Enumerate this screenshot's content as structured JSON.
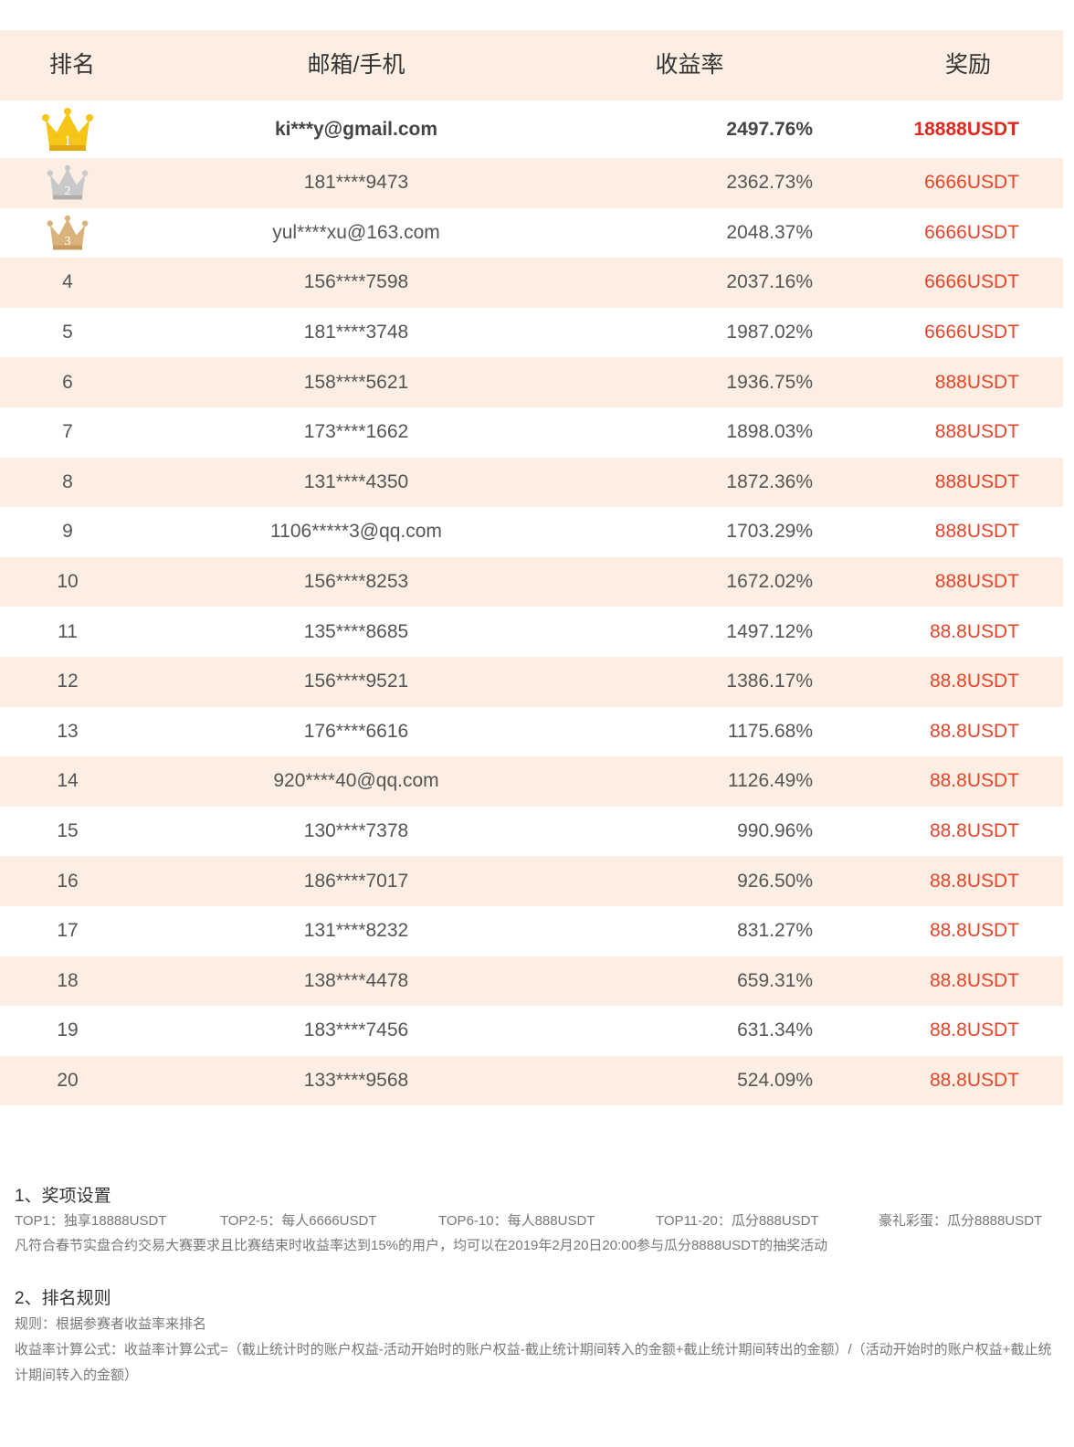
{
  "header": {
    "rank": "排名",
    "user": "邮箱/手机",
    "rate": "收益率",
    "prize": "奖励"
  },
  "rows": [
    {
      "rank": "1",
      "user": "ki***y@gmail.com",
      "rate": "2497.76%",
      "prize": "18888USDT",
      "crown": "gold-crown-icon"
    },
    {
      "rank": "2",
      "user": "181****9473",
      "rate": "2362.73%",
      "prize": "6666USDT",
      "crown": "silver-crown-icon"
    },
    {
      "rank": "3",
      "user": "yul****xu@163.com",
      "rate": "2048.37%",
      "prize": "6666USDT",
      "crown": "bronze-crown-icon"
    },
    {
      "rank": "4",
      "user": "156****7598",
      "rate": "2037.16%",
      "prize": "6666USDT"
    },
    {
      "rank": "5",
      "user": "181****3748",
      "rate": "1987.02%",
      "prize": "6666USDT"
    },
    {
      "rank": "6",
      "user": "158****5621",
      "rate": "1936.75%",
      "prize": "888USDT"
    },
    {
      "rank": "7",
      "user": "173****1662",
      "rate": "1898.03%",
      "prize": "888USDT"
    },
    {
      "rank": "8",
      "user": "131****4350",
      "rate": "1872.36%",
      "prize": "888USDT"
    },
    {
      "rank": "9",
      "user": "1106*****3@qq.com",
      "rate": "1703.29%",
      "prize": "888USDT"
    },
    {
      "rank": "10",
      "user": "156****8253",
      "rate": "1672.02%",
      "prize": "888USDT"
    },
    {
      "rank": "11",
      "user": "135****8685",
      "rate": "1497.12%",
      "prize": "88.8USDT"
    },
    {
      "rank": "12",
      "user": "156****9521",
      "rate": "1386.17%",
      "prize": "88.8USDT"
    },
    {
      "rank": "13",
      "user": "176****6616",
      "rate": "1175.68%",
      "prize": "88.8USDT"
    },
    {
      "rank": "14",
      "user": "920****40@qq.com",
      "rate": "1126.49%",
      "prize": "88.8USDT"
    },
    {
      "rank": "15",
      "user": "130****7378",
      "rate": "990.96%",
      "prize": "88.8USDT"
    },
    {
      "rank": "16",
      "user": "186****7017",
      "rate": "926.50%",
      "prize": "88.8USDT"
    },
    {
      "rank": "17",
      "user": "131****8232",
      "rate": "831.27%",
      "prize": "88.8USDT"
    },
    {
      "rank": "18",
      "user": "138****4478",
      "rate": "659.31%",
      "prize": "88.8USDT"
    },
    {
      "rank": "19",
      "user": "183****7456",
      "rate": "631.34%",
      "prize": "88.8USDT"
    },
    {
      "rank": "20",
      "user": "133****9568",
      "rate": "524.09%",
      "prize": "88.8USDT"
    }
  ],
  "colors": {
    "stripe": "#fdeee3",
    "prize": "#e8442a",
    "gold": "#f5c518",
    "silver": "#c9c9c9",
    "bronze": "#d9b27c"
  },
  "rules": {
    "section1_title": "1、奖项设置",
    "top1": "TOP1：独享18888USDT",
    "top2_5": "TOP2-5：每人6666USDT",
    "top6_10": "TOP6-10：每人888USDT",
    "top11_20": "TOP11-20：瓜分888USDT",
    "bonus": "豪礼彩蛋：瓜分8888USDT",
    "section1_note": "凡符合春节实盘合约交易大赛要求且比赛结束时收益率达到15%的用户，均可以在2019年2月20日20:00参与瓜分8888USDT的抽奖活动",
    "section2_title": "2、排名规则",
    "rule": "规则：根据参赛者收益率来排名",
    "formula": "收益率计算公式：收益率计算公式=（截止统计时的账户权益-活动开始时的账户权益-截止统计期间转入的金额+截止统计期间转出的金额）/（活动开始时的账户权益+截止统计期间转入的金额）"
  }
}
